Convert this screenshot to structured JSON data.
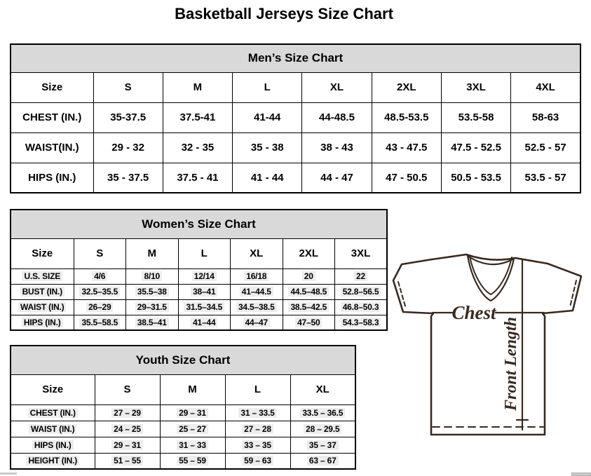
{
  "page": {
    "title": "Basketball Jerseys Size Chart"
  },
  "tables": [
    {
      "id": "men",
      "title": "Men’s Size Chart",
      "columns": [
        "Size",
        "S",
        "M",
        "L",
        "XL",
        "2XL",
        "3XL",
        "4XL"
      ],
      "rows": [
        {
          "label": "CHEST (IN.)",
          "values": [
            "35-37.5",
            "37.5-41",
            "41-44",
            "44-48.5",
            "48.5-53.5",
            "53.5-58",
            "58-63"
          ]
        },
        {
          "label": "WAIST(IN.)",
          "values": [
            "29 - 32",
            "32 - 35",
            "35 - 38",
            "38 - 43",
            "43 - 47.5",
            "47.5 - 52.5",
            "52.5 - 57"
          ]
        },
        {
          "label": "HIPS (IN.)",
          "values": [
            "35 - 37.5",
            "37.5 - 41",
            "41 - 44",
            "44 - 47",
            "47 - 50.5",
            "50.5 - 53.5",
            "53.5 - 57"
          ]
        }
      ]
    },
    {
      "id": "women",
      "title": "Women’s Size Chart",
      "columns": [
        "Size",
        "S",
        "M",
        "L",
        "XL",
        "2XL",
        "3XL"
      ],
      "rows": [
        {
          "label": "U.S. SIZE",
          "values": [
            "4/6",
            "8/10",
            "12/14",
            "16/18",
            "20",
            "22"
          ]
        },
        {
          "label": "BUST (IN.)",
          "values": [
            "32.5–35.5",
            "35.5–38",
            "38–41",
            "41–44.5",
            "44.5–48.5",
            "52.8–56.5"
          ]
        },
        {
          "label": "WAIST (IN.)",
          "values": [
            "26–29",
            "29–31.5",
            "31.5–34.5",
            "34.5–38.5",
            "38.5–42.5",
            "46.8–50.3"
          ]
        },
        {
          "label": "HIPS (IN.)",
          "values": [
            "35.5–58.5",
            "38.5–41",
            "41–44",
            "44–47",
            "47–50",
            "54.3–58.3"
          ]
        }
      ]
    },
    {
      "id": "youth",
      "title": "Youth Size Chart",
      "columns": [
        "Size",
        "S",
        "M",
        "L",
        "XL"
      ],
      "rows": [
        {
          "label": "CHEST (IN.)",
          "values": [
            "27 – 29",
            "29 – 31",
            "31 – 33.5",
            "33.5 – 36.5"
          ]
        },
        {
          "label": "WAIST (IN.)",
          "values": [
            "24 – 25",
            "25 – 27",
            "27 – 28",
            "28 – 29.5"
          ]
        },
        {
          "label": "HIPS (IN.)",
          "values": [
            "29 – 31",
            "31 – 33",
            "33 – 35",
            "35 – 37"
          ]
        },
        {
          "label": "HEIGHT (IN.)",
          "values": [
            "51 – 55",
            "55 – 59",
            "59 – 63",
            "63 – 67"
          ]
        }
      ]
    }
  ],
  "diagram": {
    "chest_label": "Chest",
    "front_length_label": "Front Length",
    "line_color": "#38291f"
  },
  "colors": {
    "table_header_bg": "#d9d9d9",
    "border": "#000000",
    "scrollbar": "#c9c9c9"
  }
}
